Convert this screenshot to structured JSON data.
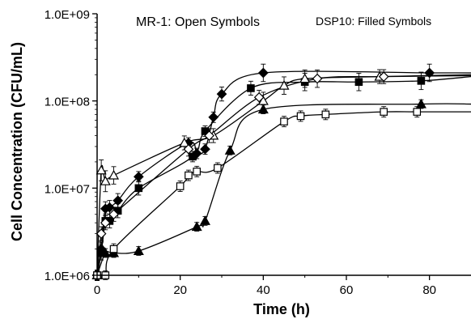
{
  "chart_data": {
    "type": "line",
    "title": "",
    "xlabel": "Time (h)",
    "ylabel": "Cell Concentration (CFU/mL)",
    "xlim": [
      0,
      90
    ],
    "ylim": [
      1000000,
      1000000000
    ],
    "yscale": "log",
    "grid": false,
    "legend": "none",
    "xticks": [
      0,
      20,
      40,
      60,
      80
    ],
    "xtick_labels": [
      "0",
      "20",
      "40",
      "60",
      "80"
    ],
    "yticks": [
      1000000,
      10000000,
      100000000,
      1000000000
    ],
    "ytick_labels": [
      "1.0E+06",
      "1.0E+07",
      "1.0E+08",
      "1.0E+09"
    ],
    "annotations": [
      {
        "text": "MR-1: Open Symbols"
      },
      {
        "text": "DSP10: Filled Symbols"
      }
    ],
    "series": [
      {
        "marker": "diamond",
        "filled": true,
        "x": [
          0,
          1,
          2,
          3,
          5,
          10,
          22,
          24,
          26,
          28,
          30,
          40,
          80,
          90
        ],
        "y": [
          1000000,
          2000000,
          5800000,
          6000000,
          7200000,
          13500000,
          33000000,
          25000000,
          28000000,
          65000000,
          120000000,
          210000000,
          210000000,
          210000000
        ],
        "err": [
          0.06,
          0.08,
          0.08,
          0.08,
          0.08,
          0.06,
          0.06,
          0.06,
          0.06,
          0.06,
          0.08,
          0.1,
          0.1,
          0.05
        ]
      },
      {
        "marker": "square",
        "filled": true,
        "x": [
          0,
          1,
          2,
          3,
          5,
          10,
          23,
          26,
          37,
          50,
          63,
          78,
          90
        ],
        "y": [
          1000000,
          1800000,
          4200000,
          4200000,
          5500000,
          10000000,
          23000000,
          45000000,
          140000000,
          165000000,
          165000000,
          170000000,
          190000000
        ],
        "err": [
          0.06,
          0.08,
          0.08,
          0.08,
          0.08,
          0.08,
          0.06,
          0.06,
          0.08,
          0.1,
          0.1,
          0.1,
          0.05
        ]
      },
      {
        "marker": "triangle",
        "filled": true,
        "x": [
          0,
          2,
          4,
          10,
          24,
          26,
          32,
          40,
          78,
          90
        ],
        "y": [
          1000000,
          1800000,
          1800000,
          1900000,
          3600000,
          4200000,
          27000000,
          80000000,
          92000000,
          92000000
        ],
        "err": [
          0.05,
          0.05,
          0.05,
          0.05,
          0.05,
          0.05,
          0.05,
          0.05,
          0.05,
          0.05
        ]
      },
      {
        "marker": "triangle",
        "filled": false,
        "x": [
          0,
          1,
          2,
          4,
          21,
          28,
          40,
          45,
          50,
          68,
          90
        ],
        "y": [
          1000000,
          16000000,
          12000000,
          14000000,
          33000000,
          40000000,
          100000000,
          150000000,
          180000000,
          190000000,
          200000000
        ],
        "err": [
          0.06,
          0.12,
          0.12,
          0.1,
          0.08,
          0.08,
          0.1,
          0.1,
          0.1,
          0.08,
          0.05
        ]
      },
      {
        "marker": "diamond",
        "filled": false,
        "x": [
          0,
          1,
          2,
          4,
          22,
          27,
          39,
          53,
          69,
          90
        ],
        "y": [
          1000000,
          3000000,
          4000000,
          5000000,
          28000000,
          40000000,
          110000000,
          180000000,
          190000000,
          195000000
        ],
        "err": [
          0.06,
          0.08,
          0.08,
          0.08,
          0.08,
          0.08,
          0.08,
          0.1,
          0.08,
          0.05
        ]
      },
      {
        "marker": "square",
        "filled": false,
        "x": [
          0,
          2,
          4,
          20,
          22,
          24,
          29,
          45,
          49,
          55,
          69,
          77,
          90
        ],
        "y": [
          1000000,
          1000000,
          2000000,
          10500000,
          14000000,
          15500000,
          17000000,
          58000000,
          67000000,
          70000000,
          75000000,
          75000000,
          75000000
        ],
        "err": [
          0.05,
          0.05,
          0.06,
          0.06,
          0.06,
          0.06,
          0.06,
          0.06,
          0.06,
          0.06,
          0.06,
          0.06,
          0.05
        ]
      }
    ]
  }
}
